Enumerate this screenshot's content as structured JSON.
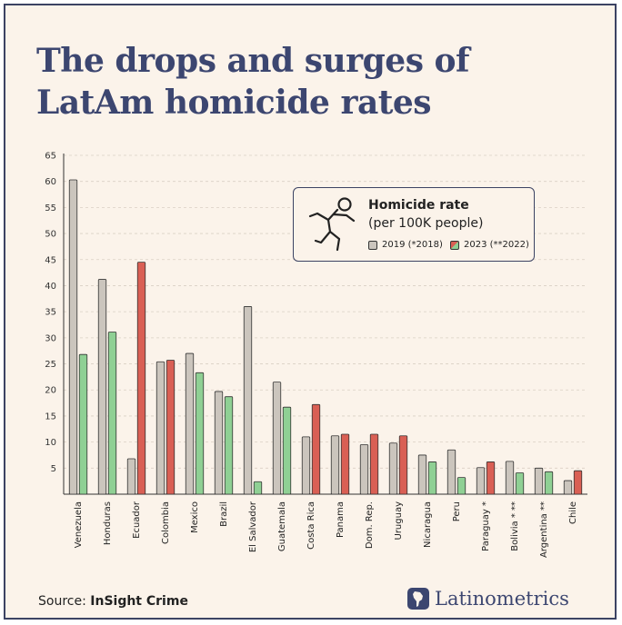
{
  "title": {
    "line1": "The drops and surges of",
    "line2": "LatAm homicide rates"
  },
  "legend": {
    "title": "Homicide rate",
    "subtitle": "(per 100K people)",
    "icon": "crime-scene-outline-icon",
    "item_2019": "2019 (*2018)",
    "item_2023": "2023 (**2022)"
  },
  "source": {
    "prefix": "Source: ",
    "name": "InSight Crime"
  },
  "brand": {
    "name": "Latinometrics",
    "icon": "latin-america-map-icon"
  },
  "colors": {
    "bar_2019": "#cbc5bd",
    "increase": "#d95f54",
    "decrease": "#8fd094",
    "title": "#3c4670",
    "background": "#fbf3ea"
  },
  "chart_data": {
    "type": "bar",
    "categories": [
      "Venezuela",
      "Honduras",
      "Ecuador",
      "Colombia",
      "Mexico",
      "Brazil",
      "El Salvador",
      "Guatemala",
      "Costa Rica",
      "Panama",
      "Dom. Rep.",
      "Uruguay",
      "Nicaragua",
      "Peru",
      "Paraguay *",
      "Bolivia * **",
      "Argentina **",
      "Chile"
    ],
    "series": [
      {
        "name": "2019 (*2018)",
        "values": [
          60.3,
          41.2,
          6.8,
          25.4,
          27.0,
          19.7,
          36.0,
          21.5,
          11.0,
          11.2,
          9.5,
          9.8,
          7.5,
          8.5,
          5.1,
          6.3,
          5.0,
          2.6
        ]
      },
      {
        "name": "2023 (**2022)",
        "values": [
          26.8,
          31.1,
          44.5,
          25.7,
          23.3,
          18.7,
          2.4,
          16.7,
          17.2,
          11.5,
          11.5,
          11.2,
          6.2,
          3.2,
          6.2,
          4.1,
          4.3,
          4.5
        ]
      }
    ],
    "change_colors": [
      "decrease",
      "decrease",
      "increase",
      "increase",
      "decrease",
      "decrease",
      "decrease",
      "decrease",
      "increase",
      "increase",
      "increase",
      "increase",
      "decrease",
      "decrease",
      "increase",
      "decrease",
      "decrease",
      "increase"
    ],
    "yticks": [
      5,
      10,
      15,
      20,
      25,
      30,
      35,
      40,
      45,
      50,
      55,
      60,
      65
    ],
    "ylim": [
      0,
      65
    ],
    "grid": true,
    "legend_position": "top-right"
  }
}
